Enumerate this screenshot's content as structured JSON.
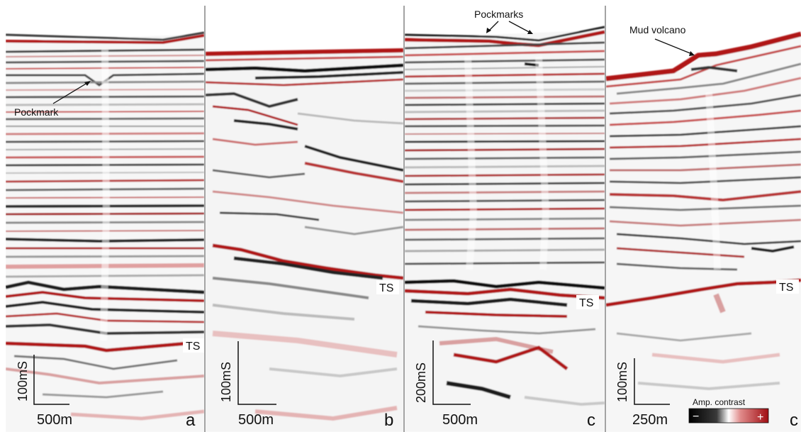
{
  "figure": {
    "panels": [
      {
        "letter": "a",
        "horizon": "TS",
        "scale_vertical": "100mS",
        "scale_horizontal": "500m",
        "annotation": "Pockmark"
      },
      {
        "letter": "b",
        "horizon": "TS",
        "scale_vertical": "100mS",
        "scale_horizontal": "500m"
      },
      {
        "letter": "c",
        "horizon": "TS",
        "scale_vertical": "200mS",
        "scale_horizontal": "500m",
        "annotation": "Pockmarks"
      },
      {
        "letter": "c",
        "horizon": "TS",
        "scale_vertical": "100mS",
        "scale_horizontal": "250m",
        "annotation": "Mud volcano"
      }
    ],
    "legend": {
      "title": "Amp. contrast",
      "negative": "−",
      "positive": "+"
    },
    "colors": {
      "positive": "#b01218",
      "negative": "#151515",
      "background": "#ffffff",
      "divider": "#666666"
    }
  }
}
